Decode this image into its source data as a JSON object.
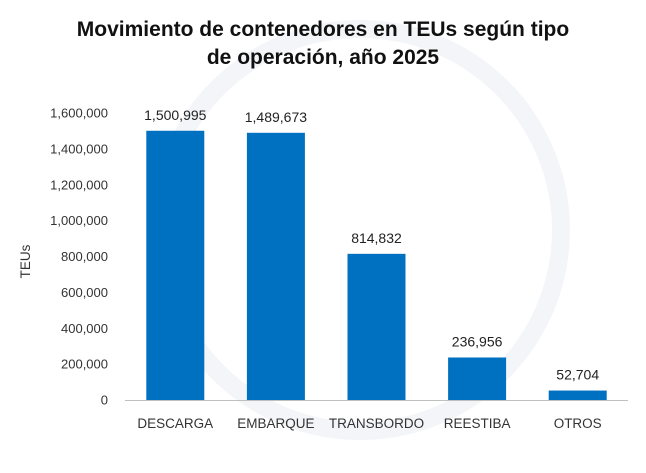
{
  "chart_data": {
    "type": "bar",
    "title_lines": [
      "Movimiento de contenedores en TEUs según tipo",
      "de operación, año 2025"
    ],
    "xlabel": "",
    "ylabel": "TEUs",
    "categories": [
      "DESCARGA",
      "EMBARQUE",
      "TRANSBORDO",
      "REESTIBA",
      "OTROS"
    ],
    "values": [
      1500995,
      1489673,
      814832,
      236956,
      52704
    ],
    "value_labels": [
      "1,500,995",
      "1,489,673",
      "814,832",
      "236,956",
      "52,704"
    ],
    "ylim": [
      0,
      1600000
    ],
    "yticks": [
      0,
      200000,
      400000,
      600000,
      800000,
      1000000,
      1200000,
      1400000,
      1600000
    ],
    "ytick_labels": [
      "0",
      "200,000",
      "400,000",
      "600,000",
      "800,000",
      "1,000,000",
      "1,200,000",
      "1,400,000",
      "1,600,000"
    ],
    "grid": false,
    "bar_color": "#0070C0",
    "axis_color": "#bfbfbf"
  }
}
